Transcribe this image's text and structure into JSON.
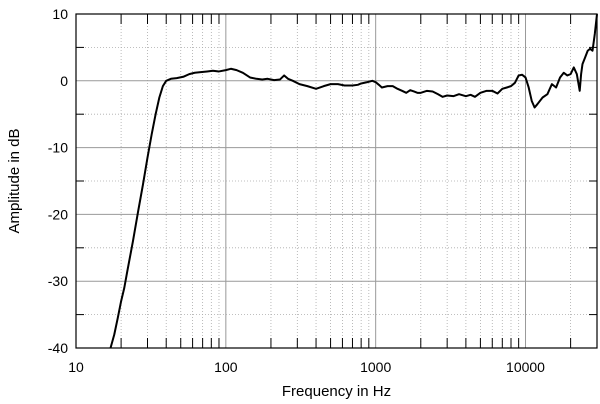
{
  "chart_data": {
    "type": "line",
    "xlabel": "Frequency in Hz",
    "ylabel": "Amplitude in dB",
    "xscale": "log",
    "xlim": [
      10,
      30000
    ],
    "ylim": [
      -40,
      10
    ],
    "grid": true,
    "x_tick_labels": [
      {
        "value": 10,
        "label": "10"
      },
      {
        "value": 100,
        "label": "100"
      },
      {
        "value": 1000,
        "label": "1000"
      },
      {
        "value": 10000,
        "label": "10000"
      }
    ],
    "y_tick_labels": [
      {
        "value": 10,
        "label": "10"
      },
      {
        "value": 0,
        "label": "0"
      },
      {
        "value": -10,
        "label": "-10"
      },
      {
        "value": -20,
        "label": "-20"
      },
      {
        "value": -30,
        "label": "-30"
      },
      {
        "value": -40,
        "label": "-40"
      }
    ],
    "series": [
      {
        "color": "#000000",
        "points": [
          [
            17,
            -40
          ],
          [
            18,
            -38
          ],
          [
            19,
            -35.5
          ],
          [
            20,
            -33
          ],
          [
            21,
            -31
          ],
          [
            22,
            -28.5
          ],
          [
            24,
            -24
          ],
          [
            26,
            -19.5
          ],
          [
            28,
            -15.5
          ],
          [
            30,
            -11.5
          ],
          [
            32,
            -8
          ],
          [
            34,
            -5
          ],
          [
            36,
            -2.5
          ],
          [
            38,
            -0.8
          ],
          [
            40,
            0
          ],
          [
            43,
            0.3
          ],
          [
            47,
            0.4
          ],
          [
            52,
            0.6
          ],
          [
            57,
            1
          ],
          [
            62,
            1.2
          ],
          [
            68,
            1.3
          ],
          [
            75,
            1.4
          ],
          [
            82,
            1.5
          ],
          [
            90,
            1.4
          ],
          [
            100,
            1.6
          ],
          [
            108,
            1.8
          ],
          [
            118,
            1.6
          ],
          [
            130,
            1.2
          ],
          [
            145,
            0.5
          ],
          [
            160,
            0.3
          ],
          [
            175,
            0.2
          ],
          [
            190,
            0.3
          ],
          [
            210,
            0.1
          ],
          [
            230,
            0.2
          ],
          [
            245,
            0.8
          ],
          [
            260,
            0.3
          ],
          [
            280,
            0
          ],
          [
            310,
            -0.5
          ],
          [
            350,
            -0.8
          ],
          [
            400,
            -1.2
          ],
          [
            450,
            -0.8
          ],
          [
            500,
            -0.5
          ],
          [
            560,
            -0.5
          ],
          [
            620,
            -0.7
          ],
          [
            700,
            -0.7
          ],
          [
            760,
            -0.6
          ],
          [
            800,
            -0.4
          ],
          [
            880,
            -0.2
          ],
          [
            950,
            0
          ],
          [
            1000,
            -0.2
          ],
          [
            1050,
            -0.6
          ],
          [
            1100,
            -1
          ],
          [
            1200,
            -0.8
          ],
          [
            1300,
            -0.8
          ],
          [
            1400,
            -1.2
          ],
          [
            1500,
            -1.5
          ],
          [
            1600,
            -1.8
          ],
          [
            1700,
            -1.4
          ],
          [
            1800,
            -1.6
          ],
          [
            1900,
            -1.8
          ],
          [
            2000,
            -1.8
          ],
          [
            2200,
            -1.5
          ],
          [
            2400,
            -1.6
          ],
          [
            2600,
            -2
          ],
          [
            2800,
            -2.4
          ],
          [
            3000,
            -2.2
          ],
          [
            3300,
            -2.3
          ],
          [
            3600,
            -2
          ],
          [
            4000,
            -2.3
          ],
          [
            4300,
            -2.1
          ],
          [
            4600,
            -2.4
          ],
          [
            5000,
            -1.8
          ],
          [
            5500,
            -1.5
          ],
          [
            6000,
            -1.5
          ],
          [
            6500,
            -1.9
          ],
          [
            7000,
            -1.2
          ],
          [
            7500,
            -1
          ],
          [
            8000,
            -0.8
          ],
          [
            8500,
            -0.3
          ],
          [
            9000,
            0.8
          ],
          [
            9500,
            0.9
          ],
          [
            10000,
            0.5
          ],
          [
            10500,
            -1
          ],
          [
            11000,
            -3
          ],
          [
            11500,
            -4
          ],
          [
            12000,
            -3.5
          ],
          [
            13000,
            -2.5
          ],
          [
            14000,
            -2
          ],
          [
            15000,
            -0.5
          ],
          [
            16000,
            -1
          ],
          [
            17000,
            0.5
          ],
          [
            18000,
            1.2
          ],
          [
            19000,
            0.8
          ],
          [
            20000,
            1
          ],
          [
            21000,
            2
          ],
          [
            22000,
            1
          ],
          [
            23000,
            -1.5
          ],
          [
            23500,
            1
          ],
          [
            24000,
            2.5
          ],
          [
            25000,
            3.5
          ],
          [
            26000,
            4.5
          ],
          [
            27000,
            4.8
          ],
          [
            28000,
            4.5
          ],
          [
            29000,
            7
          ],
          [
            30000,
            10
          ]
        ]
      }
    ]
  }
}
